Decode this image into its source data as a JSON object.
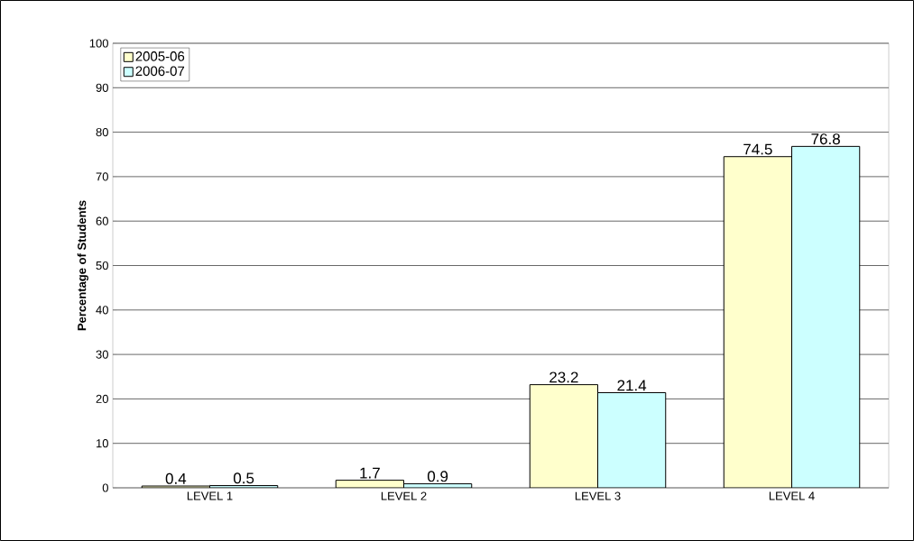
{
  "chart_data": {
    "type": "bar",
    "ylabel": "Percentage of Students",
    "categories": [
      "LEVEL 1",
      "LEVEL 2",
      "LEVEL 3",
      "LEVEL 4"
    ],
    "series": [
      {
        "name": "2005-06",
        "color": "#ffffcc",
        "values": [
          0.4,
          1.7,
          23.2,
          74.5
        ]
      },
      {
        "name": "2006-07",
        "color": "#ccffff",
        "values": [
          0.5,
          0.9,
          21.4,
          76.8
        ]
      }
    ],
    "ylim": [
      0,
      100
    ],
    "yticks": [
      0,
      10,
      20,
      30,
      40,
      50,
      60,
      70,
      80,
      90,
      100
    ],
    "grid": "y",
    "legend": "top left",
    "data_labels": true
  }
}
